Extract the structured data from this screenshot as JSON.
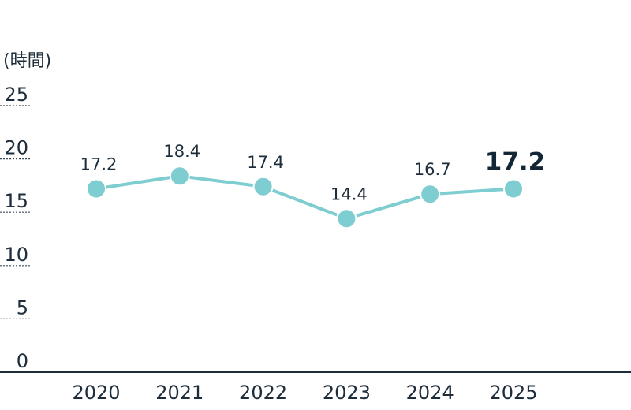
{
  "chart_data": {
    "type": "line",
    "y_unit_label": "(時間)",
    "categories": [
      "2020",
      "2021",
      "2022",
      "2023",
      "2024",
      "2025"
    ],
    "values": [
      17.2,
      18.4,
      17.4,
      14.4,
      16.7,
      17.2
    ],
    "value_labels": [
      "17.2",
      "18.4",
      "17.4",
      "14.4",
      "16.7",
      "17.2"
    ],
    "highlight_index": 5,
    "yticks": [
      "0",
      "5",
      "10",
      "15",
      "20",
      "25"
    ],
    "ylim": [
      0,
      25
    ],
    "grid": "dotted-at-axis",
    "legend": "none",
    "colors": {
      "line": "#7dcdd1",
      "marker": "#7dcdd1",
      "text": "#1e2d3b",
      "axis": "#1e2d3b",
      "gridline": "#3d4a55"
    }
  }
}
